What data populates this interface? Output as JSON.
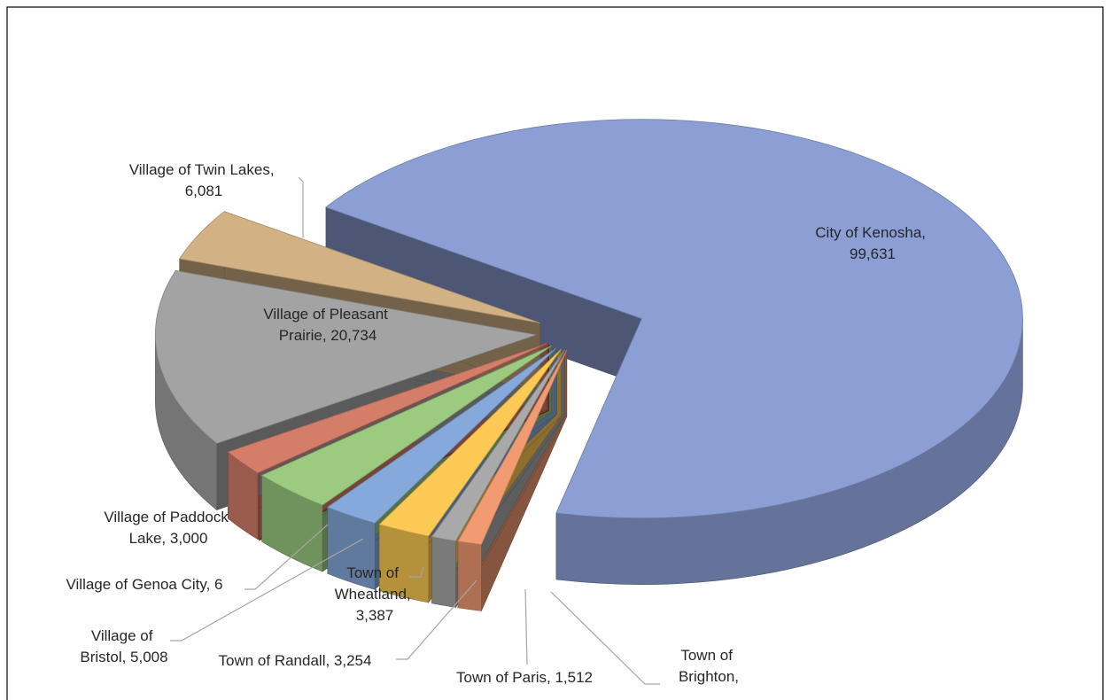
{
  "chart_data": {
    "type": "pie3d",
    "categories": [
      "City of Kenosha",
      "Town of Brighton",
      "Town of Paris",
      "Town of Randall",
      "Town of Wheatland",
      "Village of Bristol",
      "Village of Genoa City",
      "Village of Paddock Lake",
      "Village of Pleasant Prairie",
      "Village of Twin Lakes"
    ],
    "values": [
      99631,
      1456,
      1512,
      3254,
      3387,
      5008,
      6,
      3000,
      20734,
      6081
    ],
    "value_labels": [
      "City of Kenosha, 99,631",
      "Town of Brighton,",
      "Town of Paris, 1,512",
      "Town of Randall, 3,254",
      "Town of Wheatland, 3,387",
      "Village of Bristol, 5,008",
      "Village of Genoa City, 6",
      "Village of Paddock Lake, 3,000",
      "Village of Pleasant Prairie, 20,734",
      "Village of Twin Lakes, 6,081"
    ],
    "colors": [
      "#8c9fd4",
      "#f29b72",
      "#a9a9a9",
      "#fcc954",
      "#86a9dc",
      "#9ccb80",
      "#c0504d",
      "#d47e6a",
      "#a3a3a3",
      "#d2b184"
    ]
  }
}
